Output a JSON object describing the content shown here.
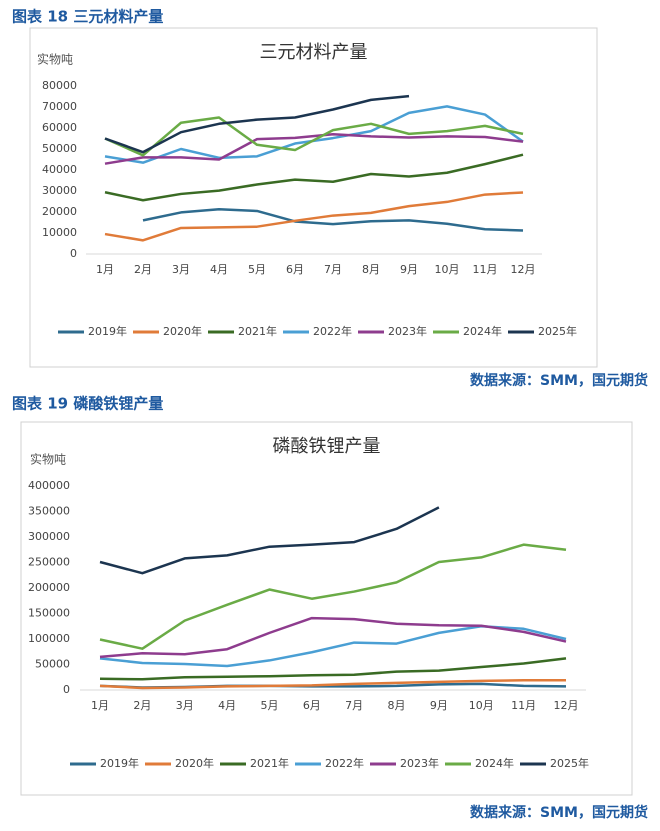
{
  "chart_data": [
    {
      "type": "line",
      "caption": "图表 18 三元材料产量",
      "title": "三元材料产量",
      "y_label": "实物吨",
      "source": "数据来源：SMM，国元期货",
      "categories": [
        "1月",
        "2月",
        "3月",
        "4月",
        "5月",
        "6月",
        "7月",
        "8月",
        "9月",
        "10月",
        "11月",
        "12月"
      ],
      "ylim": [
        0,
        80000
      ],
      "yticks": [
        0,
        10000,
        20000,
        30000,
        40000,
        50000,
        60000,
        70000,
        80000
      ],
      "series": [
        {
          "name": "2019年",
          "color": "#2e6b8e",
          "values": [
            null,
            16000,
            19800,
            21300,
            20500,
            15500,
            14200,
            15600,
            16000,
            14400,
            11800,
            11200
          ]
        },
        {
          "name": "2020年",
          "color": "#e07b39",
          "values": [
            9500,
            6500,
            12400,
            12700,
            13000,
            15800,
            18300,
            19600,
            22800,
            24800,
            28300,
            29300
          ]
        },
        {
          "name": "2021年",
          "color": "#3a6b24",
          "values": [
            29400,
            25600,
            28600,
            30200,
            33100,
            35400,
            34400,
            38100,
            36900,
            38700,
            42800,
            47300
          ]
        },
        {
          "name": "2022年",
          "color": "#4a9fd4",
          "values": [
            46500,
            43500,
            50000,
            45800,
            46500,
            52600,
            55200,
            58500,
            67200,
            70300,
            66400,
            53500
          ]
        },
        {
          "name": "2023年",
          "color": "#8e3c8e",
          "values": [
            43000,
            46000,
            46000,
            45000,
            54700,
            55300,
            57000,
            56000,
            55500,
            56000,
            55700,
            53500
          ]
        },
        {
          "name": "2024年",
          "color": "#6aab46",
          "values": [
            55000,
            47000,
            62500,
            65000,
            52000,
            49500,
            59000,
            62000,
            57200,
            58500,
            61000,
            57200
          ]
        },
        {
          "name": "2025年",
          "color": "#1c3550",
          "values": [
            55000,
            48500,
            58000,
            62000,
            64000,
            65000,
            68800,
            73400,
            75200,
            null,
            null,
            null
          ]
        }
      ]
    },
    {
      "type": "line",
      "caption": "图表 19 磷酸铁锂产量",
      "title": "磷酸铁锂产量",
      "y_label": "实物吨",
      "source": "数据来源：SMM，国元期货",
      "categories": [
        "1月",
        "2月",
        "3月",
        "4月",
        "5月",
        "6月",
        "7月",
        "8月",
        "9月",
        "10月",
        "11月",
        "12月"
      ],
      "ylim": [
        0,
        400000
      ],
      "yticks": [
        0,
        50000,
        100000,
        150000,
        200000,
        250000,
        300000,
        350000,
        400000
      ],
      "series": [
        {
          "name": "2019年",
          "color": "#2e6b8e",
          "values": [
            8000,
            5000,
            6000,
            8000,
            8000,
            7000,
            7000,
            8000,
            11000,
            12000,
            8000,
            7000
          ]
        },
        {
          "name": "2020年",
          "color": "#e07b39",
          "values": [
            8000,
            4000,
            5000,
            7000,
            8000,
            9000,
            12000,
            14000,
            16000,
            18000,
            19000,
            19000
          ]
        },
        {
          "name": "2021年",
          "color": "#3a6b24",
          "values": [
            22000,
            21000,
            25000,
            26000,
            27000,
            29000,
            30000,
            36000,
            38000,
            45000,
            52000,
            62000
          ]
        },
        {
          "name": "2022年",
          "color": "#4a9fd4",
          "values": [
            62000,
            53000,
            51000,
            47000,
            58000,
            74000,
            93000,
            91000,
            112000,
            125000,
            120000,
            100000
          ]
        },
        {
          "name": "2023年",
          "color": "#8e3c8e",
          "values": [
            65000,
            72000,
            70000,
            80000,
            112000,
            141000,
            139000,
            130000,
            127000,
            126000,
            114000,
            95000
          ]
        },
        {
          "name": "2024年",
          "color": "#6aab46",
          "values": [
            99000,
            81000,
            136000,
            167000,
            197000,
            179000,
            193000,
            211000,
            251000,
            260000,
            285000,
            275000
          ]
        },
        {
          "name": "2025年",
          "color": "#1c3550",
          "values": [
            251000,
            229000,
            258000,
            264000,
            281000,
            285000,
            290000,
            316000,
            358000,
            null,
            null,
            null
          ]
        }
      ]
    }
  ]
}
